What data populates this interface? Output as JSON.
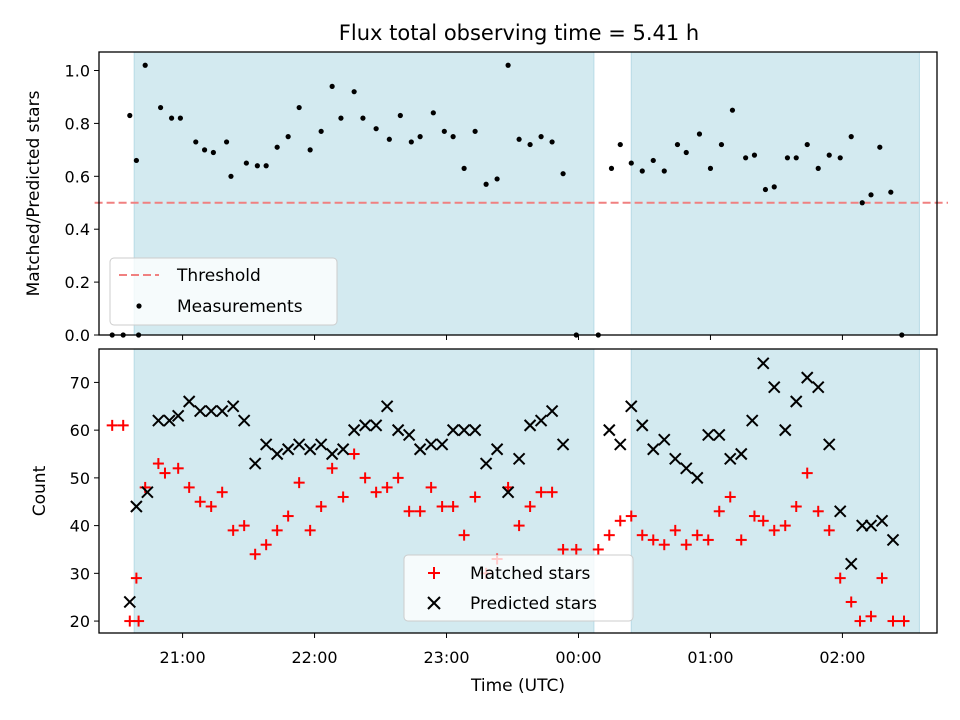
{
  "chart_data": [
    {
      "type": "scatter",
      "title": "Flux total observing time = 5.41 h",
      "xlabel": "",
      "ylabel": "Matched/Predicted stars",
      "xlim": [
        "20:22",
        "02:43"
      ],
      "ylim": [
        0,
        1.07
      ],
      "yticks": [
        0.0,
        0.2,
        0.4,
        0.6,
        0.8,
        1.0
      ],
      "ytick_labels": [
        "0.0",
        "0.2",
        "0.4",
        "0.6",
        "0.8",
        "1.0"
      ],
      "shaded_intervals": [
        [
          "20:38",
          "00:07"
        ],
        [
          "00:24",
          "02:35"
        ]
      ],
      "legend": {
        "location": "lower-left",
        "entries": [
          "Threshold",
          "Measurements"
        ]
      },
      "threshold": {
        "name": "Threshold",
        "value": 0.5,
        "x_range": [
          "20:20",
          "02:48"
        ],
        "color": "#f08080",
        "style": "dashed"
      },
      "series": [
        {
          "name": "Measurements",
          "color": "#000000",
          "points": [
            [
              "20:28",
              0.0
            ],
            [
              "20:33",
              0.0
            ],
            [
              "20:36",
              0.83
            ],
            [
              "20:40",
              0.0
            ],
            [
              "20:39",
              0.66
            ],
            [
              "20:43",
              1.02
            ],
            [
              "20:50",
              0.86
            ],
            [
              "20:55",
              0.82
            ],
            [
              "20:59",
              0.82
            ],
            [
              "21:06",
              0.73
            ],
            [
              "21:10",
              0.7
            ],
            [
              "21:14",
              0.69
            ],
            [
              "21:20",
              0.73
            ],
            [
              "21:22",
              0.6
            ],
            [
              "21:29",
              0.65
            ],
            [
              "21:34",
              0.64
            ],
            [
              "21:38",
              0.64
            ],
            [
              "21:43",
              0.71
            ],
            [
              "21:48",
              0.75
            ],
            [
              "21:53",
              0.86
            ],
            [
              "21:58",
              0.7
            ],
            [
              "22:03",
              0.77
            ],
            [
              "22:08",
              0.94
            ],
            [
              "22:12",
              0.82
            ],
            [
              "22:18",
              0.92
            ],
            [
              "22:22",
              0.82
            ],
            [
              "22:28",
              0.78
            ],
            [
              "22:34",
              0.74
            ],
            [
              "22:39",
              0.83
            ],
            [
              "22:44",
              0.73
            ],
            [
              "22:48",
              0.75
            ],
            [
              "22:54",
              0.84
            ],
            [
              "22:59",
              0.77
            ],
            [
              "23:03",
              0.75
            ],
            [
              "23:08",
              0.63
            ],
            [
              "23:13",
              0.77
            ],
            [
              "23:18",
              0.57
            ],
            [
              "23:23",
              0.59
            ],
            [
              "23:28",
              1.02
            ],
            [
              "23:33",
              0.74
            ],
            [
              "23:38",
              0.72
            ],
            [
              "23:43",
              0.75
            ],
            [
              "23:48",
              0.73
            ],
            [
              "23:53",
              0.61
            ],
            [
              "23:59",
              0.0
            ],
            [
              "00:09",
              0.0
            ],
            [
              "00:15",
              0.63
            ],
            [
              "00:19",
              0.72
            ],
            [
              "00:24",
              0.65
            ],
            [
              "00:29",
              0.62
            ],
            [
              "00:34",
              0.66
            ],
            [
              "00:39",
              0.62
            ],
            [
              "00:45",
              0.72
            ],
            [
              "00:49",
              0.69
            ],
            [
              "00:55",
              0.76
            ],
            [
              "01:00",
              0.63
            ],
            [
              "01:05",
              0.72
            ],
            [
              "01:10",
              0.85
            ],
            [
              "01:16",
              0.67
            ],
            [
              "01:20",
              0.68
            ],
            [
              "01:25",
              0.55
            ],
            [
              "01:29",
              0.56
            ],
            [
              "01:35",
              0.67
            ],
            [
              "01:39",
              0.67
            ],
            [
              "01:44",
              0.72
            ],
            [
              "01:49",
              0.63
            ],
            [
              "01:54",
              0.68
            ],
            [
              "01:59",
              0.67
            ],
            [
              "02:04",
              0.75
            ],
            [
              "02:09",
              0.5
            ],
            [
              "02:13",
              0.53
            ],
            [
              "02:17",
              0.71
            ],
            [
              "02:22",
              0.54
            ],
            [
              "02:27",
              0.0
            ]
          ]
        }
      ]
    },
    {
      "type": "scatter",
      "title": "",
      "xlabel": "Time (UTC)",
      "ylabel": "Count",
      "xlim": [
        "20:22",
        "02:43"
      ],
      "ylim": [
        17.5,
        77
      ],
      "yticks": [
        20,
        30,
        40,
        50,
        60,
        70
      ],
      "ytick_labels": [
        "20",
        "30",
        "40",
        "50",
        "60",
        "70"
      ],
      "xticks": [
        "21:00",
        "22:00",
        "23:00",
        "00:00",
        "01:00",
        "02:00"
      ],
      "xtick_labels": [
        "21:00",
        "22:00",
        "23:00",
        "00:00",
        "01:00",
        "02:00"
      ],
      "shaded_intervals": [
        [
          "20:38",
          "00:07"
        ],
        [
          "00:24",
          "02:35"
        ]
      ],
      "legend": {
        "location": "lower-center",
        "entries": [
          "Matched stars",
          "Predicted stars"
        ]
      },
      "series": [
        {
          "name": "Matched stars",
          "marker": "plus",
          "color": "#ff0000",
          "points": [
            [
              "20:28",
              61
            ],
            [
              "20:33",
              61
            ],
            [
              "20:36",
              20
            ],
            [
              "20:40",
              20
            ],
            [
              "20:39",
              29
            ],
            [
              "20:43",
              48
            ],
            [
              "20:49",
              53
            ],
            [
              "20:52",
              51
            ],
            [
              "20:58",
              52
            ],
            [
              "21:03",
              48
            ],
            [
              "21:08",
              45
            ],
            [
              "21:13",
              44
            ],
            [
              "21:18",
              47
            ],
            [
              "21:23",
              39
            ],
            [
              "21:28",
              40
            ],
            [
              "21:33",
              34
            ],
            [
              "21:38",
              36
            ],
            [
              "21:43",
              39
            ],
            [
              "21:48",
              42
            ],
            [
              "21:53",
              49
            ],
            [
              "21:58",
              39
            ],
            [
              "22:03",
              44
            ],
            [
              "22:08",
              52
            ],
            [
              "22:13",
              46
            ],
            [
              "22:18",
              55
            ],
            [
              "22:23",
              50
            ],
            [
              "22:28",
              47
            ],
            [
              "22:33",
              48
            ],
            [
              "22:38",
              50
            ],
            [
              "22:43",
              43
            ],
            [
              "22:48",
              43
            ],
            [
              "22:53",
              48
            ],
            [
              "22:58",
              44
            ],
            [
              "23:03",
              44
            ],
            [
              "23:08",
              38
            ],
            [
              "23:13",
              46
            ],
            [
              "23:18",
              30
            ],
            [
              "23:23",
              33
            ],
            [
              "23:28",
              48
            ],
            [
              "23:33",
              40
            ],
            [
              "23:38",
              44
            ],
            [
              "23:43",
              47
            ],
            [
              "23:48",
              47
            ],
            [
              "23:53",
              35
            ],
            [
              "23:59",
              35
            ],
            [
              "00:09",
              35
            ],
            [
              "00:14",
              38
            ],
            [
              "00:19",
              41
            ],
            [
              "00:24",
              42
            ],
            [
              "00:29",
              38
            ],
            [
              "00:34",
              37
            ],
            [
              "00:39",
              36
            ],
            [
              "00:44",
              39
            ],
            [
              "00:49",
              36
            ],
            [
              "00:54",
              38
            ],
            [
              "00:59",
              37
            ],
            [
              "01:04",
              43
            ],
            [
              "01:09",
              46
            ],
            [
              "01:14",
              37
            ],
            [
              "01:20",
              42
            ],
            [
              "01:24",
              41
            ],
            [
              "01:29",
              39
            ],
            [
              "01:34",
              40
            ],
            [
              "01:39",
              44
            ],
            [
              "01:44",
              51
            ],
            [
              "01:49",
              43
            ],
            [
              "01:54",
              39
            ],
            [
              "01:59",
              29
            ],
            [
              "02:04",
              24
            ],
            [
              "02:08",
              20
            ],
            [
              "02:13",
              21
            ],
            [
              "02:18",
              29
            ],
            [
              "02:23",
              20
            ],
            [
              "02:28",
              20
            ]
          ]
        },
        {
          "name": "Predicted stars",
          "marker": "x",
          "color": "#000000",
          "points": [
            [
              "20:36",
              24
            ],
            [
              "20:39",
              44
            ],
            [
              "20:44",
              47
            ],
            [
              "20:49",
              62
            ],
            [
              "20:54",
              62
            ],
            [
              "20:58",
              63
            ],
            [
              "21:03",
              66
            ],
            [
              "21:08",
              64
            ],
            [
              "21:13",
              64
            ],
            [
              "21:18",
              64
            ],
            [
              "21:23",
              65
            ],
            [
              "21:28",
              62
            ],
            [
              "21:33",
              53
            ],
            [
              "21:38",
              57
            ],
            [
              "21:43",
              55
            ],
            [
              "21:48",
              56
            ],
            [
              "21:53",
              57
            ],
            [
              "21:58",
              56
            ],
            [
              "22:03",
              57
            ],
            [
              "22:08",
              55
            ],
            [
              "22:13",
              56
            ],
            [
              "22:18",
              60
            ],
            [
              "22:23",
              61
            ],
            [
              "22:28",
              61
            ],
            [
              "22:33",
              65
            ],
            [
              "22:38",
              60
            ],
            [
              "22:43",
              59
            ],
            [
              "22:48",
              56
            ],
            [
              "22:53",
              57
            ],
            [
              "22:58",
              57
            ],
            [
              "23:03",
              60
            ],
            [
              "23:08",
              60
            ],
            [
              "23:13",
              60
            ],
            [
              "23:18",
              53
            ],
            [
              "23:23",
              56
            ],
            [
              "23:28",
              47
            ],
            [
              "23:33",
              54
            ],
            [
              "23:38",
              61
            ],
            [
              "23:43",
              62
            ],
            [
              "23:48",
              64
            ],
            [
              "23:53",
              57
            ],
            [
              "00:14",
              60
            ],
            [
              "00:19",
              57
            ],
            [
              "00:24",
              65
            ],
            [
              "00:29",
              61
            ],
            [
              "00:34",
              56
            ],
            [
              "00:39",
              58
            ],
            [
              "00:44",
              54
            ],
            [
              "00:49",
              52
            ],
            [
              "00:54",
              50
            ],
            [
              "00:59",
              59
            ],
            [
              "01:04",
              59
            ],
            [
              "01:09",
              54
            ],
            [
              "01:14",
              55
            ],
            [
              "01:19",
              62
            ],
            [
              "01:24",
              74
            ],
            [
              "01:29",
              69
            ],
            [
              "01:34",
              60
            ],
            [
              "01:39",
              66
            ],
            [
              "01:44",
              71
            ],
            [
              "01:49",
              69
            ],
            [
              "01:54",
              57
            ],
            [
              "01:59",
              43
            ],
            [
              "02:04",
              32
            ],
            [
              "02:09",
              40
            ],
            [
              "02:13",
              40
            ],
            [
              "02:18",
              41
            ],
            [
              "02:23",
              37
            ]
          ]
        }
      ]
    }
  ]
}
